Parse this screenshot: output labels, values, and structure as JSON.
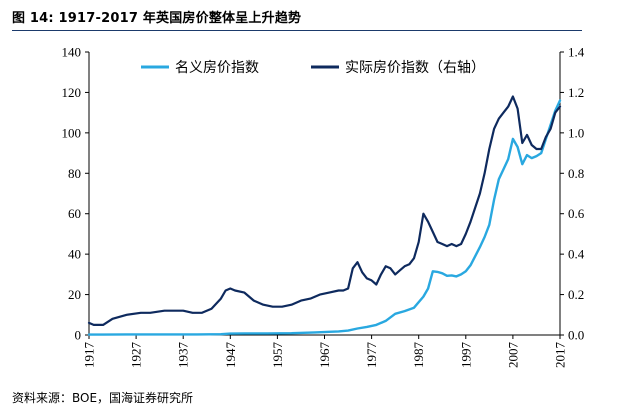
{
  "figure": {
    "title": "图 14:  1917-2017 年英国房价整体呈上升趋势",
    "source": "资料来源：BOE，国海证券研究所"
  },
  "colors": {
    "nominal": "#29a8e0",
    "real": "#0e2a5e",
    "axis": "#000000",
    "rule": "#1b3a6b"
  },
  "chart_data": {
    "type": "line",
    "x_ticks": [
      "1917",
      "1927",
      "1937",
      "1947",
      "1957",
      "1967",
      "1977",
      "1987",
      "1997",
      "2007",
      "2017"
    ],
    "y_left_ticks": [
      "0",
      "20",
      "40",
      "60",
      "80",
      "100",
      "120",
      "140"
    ],
    "y_right_ticks": [
      "0.0",
      "0.2",
      "0.4",
      "0.6",
      "0.8",
      "1.0",
      "1.2",
      "1.4"
    ],
    "y_left_range": [
      0,
      140
    ],
    "y_right_range": [
      0,
      1.4
    ],
    "x_range": [
      1917,
      2017
    ],
    "legend_position": "top-center",
    "grid": false,
    "series": [
      {
        "name": "名义房价指数",
        "axis": "left",
        "color": "#29a8e0",
        "x": [
          1917,
          1920,
          1925,
          1930,
          1935,
          1940,
          1945,
          1947,
          1950,
          1955,
          1960,
          1965,
          1968,
          1970,
          1972,
          1974,
          1976,
          1978,
          1980,
          1982,
          1984,
          1986,
          1988,
          1989,
          1990,
          1991,
          1992,
          1993,
          1994,
          1995,
          1996,
          1997,
          1998,
          1999,
          2000,
          2001,
          2002,
          2003,
          2004,
          2005,
          2006,
          2007,
          2008,
          2009,
          2010,
          2011,
          2012,
          2013,
          2014,
          2015,
          2016,
          2017
        ],
        "y": [
          0.2,
          0.2,
          0.3,
          0.3,
          0.3,
          0.3,
          0.4,
          0.7,
          0.8,
          0.8,
          0.9,
          1.3,
          1.6,
          1.8,
          2.2,
          3.2,
          4.0,
          5.0,
          7.0,
          10.5,
          11.8,
          13.5,
          19.0,
          23.0,
          31.5,
          31.2,
          30.5,
          29.3,
          29.5,
          29.0,
          30.0,
          31.5,
          34.5,
          39.0,
          43.5,
          48.5,
          54.5,
          67.0,
          77.0,
          82.0,
          87.0,
          97.0,
          93.0,
          84.5,
          89.0,
          87.5,
          88.5,
          90.0,
          97.0,
          104.0,
          111.0,
          116.0
        ]
      },
      {
        "name": "实际房价指数（右轴）",
        "axis": "right",
        "color": "#0e2a5e",
        "x": [
          1917,
          1918,
          1920,
          1922,
          1925,
          1928,
          1930,
          1933,
          1935,
          1937,
          1939,
          1941,
          1943,
          1945,
          1946,
          1947,
          1948,
          1950,
          1952,
          1954,
          1956,
          1958,
          1960,
          1962,
          1964,
          1966,
          1968,
          1970,
          1971,
          1972,
          1973,
          1974,
          1975,
          1976,
          1977,
          1978,
          1979,
          1980,
          1981,
          1982,
          1983,
          1984,
          1985,
          1986,
          1987,
          1988,
          1989,
          1990,
          1991,
          1992,
          1993,
          1994,
          1995,
          1996,
          1997,
          1998,
          1999,
          2000,
          2001,
          2002,
          2003,
          2004,
          2005,
          2006,
          2007,
          2008,
          2009,
          2010,
          2011,
          2012,
          2013,
          2014,
          2015,
          2016,
          2017
        ],
        "y": [
          0.06,
          0.05,
          0.05,
          0.08,
          0.1,
          0.11,
          0.11,
          0.12,
          0.12,
          0.12,
          0.11,
          0.11,
          0.13,
          0.18,
          0.22,
          0.23,
          0.22,
          0.21,
          0.17,
          0.15,
          0.14,
          0.14,
          0.15,
          0.17,
          0.18,
          0.2,
          0.21,
          0.22,
          0.22,
          0.23,
          0.33,
          0.36,
          0.31,
          0.28,
          0.27,
          0.25,
          0.3,
          0.34,
          0.33,
          0.3,
          0.32,
          0.34,
          0.35,
          0.38,
          0.46,
          0.6,
          0.56,
          0.51,
          0.46,
          0.45,
          0.44,
          0.45,
          0.44,
          0.45,
          0.5,
          0.56,
          0.63,
          0.7,
          0.8,
          0.92,
          1.02,
          1.07,
          1.1,
          1.13,
          1.18,
          1.12,
          0.95,
          0.99,
          0.94,
          0.92,
          0.92,
          0.98,
          1.02,
          1.1,
          1.13
        ]
      }
    ]
  }
}
